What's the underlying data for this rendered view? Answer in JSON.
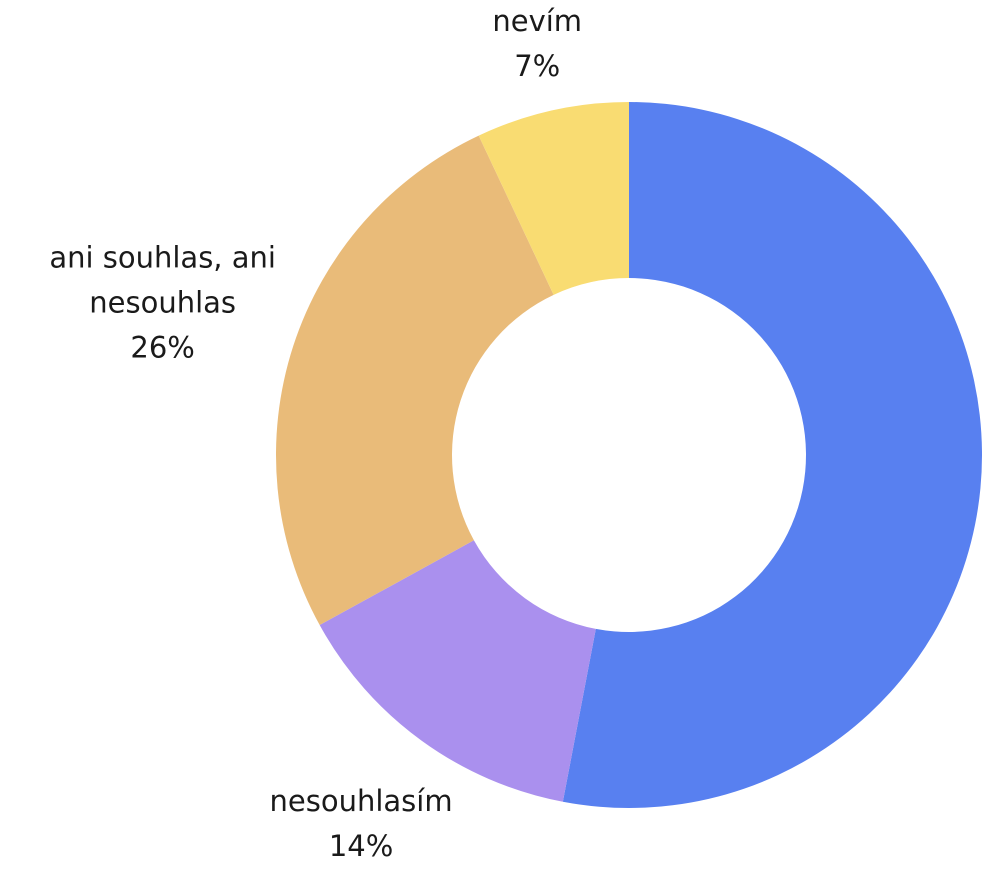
{
  "chart_data": {
    "type": "donut",
    "categories": [
      null,
      "nesouhlasím",
      "ani souhlas, ani nesouhlas",
      "nevím"
    ],
    "values": [
      53,
      14,
      26,
      7
    ],
    "value_labels": [
      null,
      "14%",
      "26%",
      "7%"
    ],
    "colors": [
      "#5880f0",
      "#aa90ee",
      "#e9bb79",
      "#f9dc72"
    ]
  }
}
